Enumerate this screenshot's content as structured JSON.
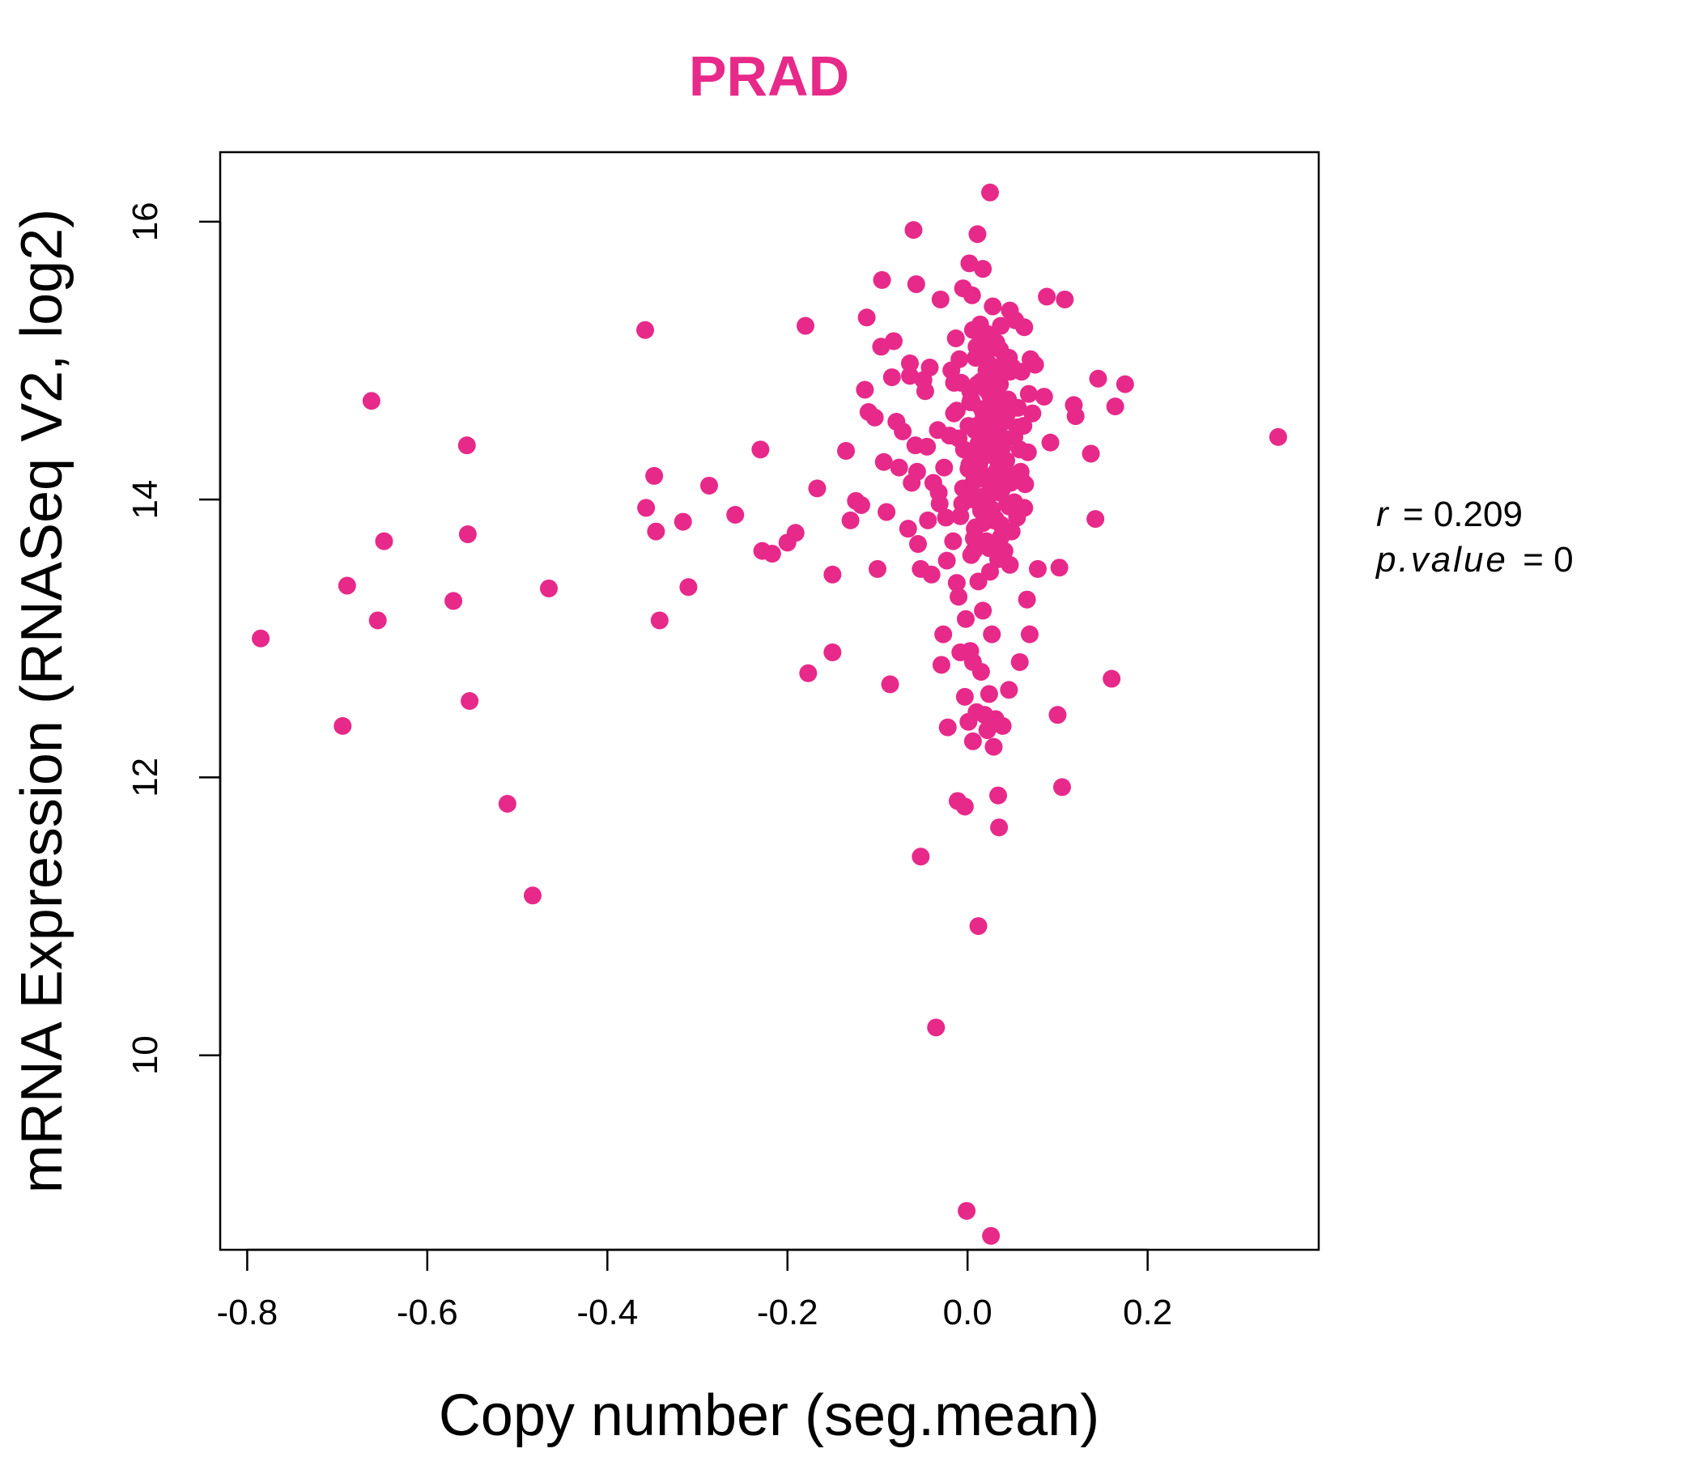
{
  "chart_data": {
    "type": "scatter",
    "title": "PRAD",
    "xlabel": "Copy number (seg.mean)",
    "ylabel": "mRNA Expression (RNASeq V2, log2)",
    "xlim": [
      -0.83,
      0.39
    ],
    "ylim": [
      8.6,
      16.5
    ],
    "x_ticks": [
      -0.8,
      -0.6,
      -0.4,
      -0.2,
      0.0,
      0.2
    ],
    "x_tick_labels": [
      "-0.8",
      "-0.6",
      "-0.4",
      "-0.2",
      "0.0",
      "0.2"
    ],
    "y_ticks": [
      10,
      12,
      14,
      16
    ],
    "y_tick_labels": [
      "10",
      "12",
      "14",
      "16"
    ],
    "grid": false,
    "point_color": "#E7298A",
    "title_color": "#E7298A",
    "annotation": {
      "r_label": "r",
      "r_value": "0.209",
      "p_label": "p.value",
      "p_value": "0"
    },
    "points": [
      [
        -0.785,
        13.0
      ],
      [
        -0.694,
        12.37
      ],
      [
        -0.689,
        13.38
      ],
      [
        -0.662,
        14.71
      ],
      [
        -0.655,
        13.13
      ],
      [
        -0.648,
        13.7
      ],
      [
        -0.571,
        13.27
      ],
      [
        -0.556,
        14.39
      ],
      [
        -0.555,
        13.75
      ],
      [
        -0.553,
        12.55
      ],
      [
        -0.511,
        11.81
      ],
      [
        -0.483,
        11.15
      ],
      [
        -0.465,
        13.36
      ],
      [
        -0.358,
        15.22
      ],
      [
        -0.357,
        13.94
      ],
      [
        -0.348,
        14.17
      ],
      [
        -0.346,
        13.77
      ],
      [
        -0.342,
        13.13
      ],
      [
        -0.316,
        13.84
      ],
      [
        -0.31,
        13.37
      ],
      [
        -0.287,
        14.1
      ],
      [
        -0.258,
        13.89
      ],
      [
        -0.23,
        14.36
      ],
      [
        -0.228,
        13.63
      ],
      [
        -0.217,
        13.61
      ],
      [
        -0.2,
        13.69
      ],
      [
        -0.191,
        13.76
      ],
      [
        -0.18,
        15.25
      ],
      [
        -0.177,
        12.75
      ],
      [
        -0.167,
        14.08
      ],
      [
        -0.15,
        13.46
      ],
      [
        -0.15,
        12.9
      ],
      [
        -0.135,
        14.35
      ],
      [
        -0.13,
        13.85
      ],
      [
        -0.124,
        13.99
      ],
      [
        -0.118,
        13.96
      ],
      [
        -0.114,
        14.79
      ],
      [
        -0.112,
        15.31
      ],
      [
        -0.11,
        14.63
      ],
      [
        -0.103,
        14.59
      ],
      [
        -0.1,
        13.5
      ],
      [
        -0.096,
        15.1
      ],
      [
        -0.095,
        15.58
      ],
      [
        -0.093,
        14.27
      ],
      [
        -0.09,
        13.91
      ],
      [
        -0.086,
        12.67
      ],
      [
        -0.084,
        14.88
      ],
      [
        -0.082,
        15.14
      ],
      [
        -0.079,
        14.56
      ],
      [
        -0.076,
        14.23
      ],
      [
        -0.072,
        14.49
      ],
      [
        -0.066,
        13.79
      ],
      [
        -0.064,
        14.89
      ],
      [
        -0.064,
        14.98
      ],
      [
        -0.062,
        14.12
      ],
      [
        -0.06,
        15.94
      ],
      [
        -0.058,
        14.39
      ],
      [
        -0.057,
        15.55
      ],
      [
        -0.056,
        14.2
      ],
      [
        -0.055,
        13.68
      ],
      [
        -0.052,
        13.5
      ],
      [
        -0.052,
        11.43
      ],
      [
        -0.049,
        14.86
      ],
      [
        -0.047,
        14.78
      ],
      [
        -0.045,
        14.38
      ],
      [
        -0.044,
        13.85
      ],
      [
        -0.042,
        14.95
      ],
      [
        -0.04,
        13.46
      ],
      [
        -0.038,
        14.12
      ],
      [
        -0.035,
        10.2
      ],
      [
        -0.033,
        14.5
      ],
      [
        -0.032,
        14.05
      ],
      [
        -0.031,
        13.97
      ],
      [
        -0.03,
        15.44
      ],
      [
        -0.029,
        12.81
      ],
      [
        -0.027,
        13.03
      ],
      [
        -0.026,
        14.23
      ],
      [
        -0.024,
        13.87
      ],
      [
        -0.023,
        13.56
      ],
      [
        -0.022,
        12.36
      ],
      [
        -0.02,
        14.46
      ],
      [
        -0.018,
        14.93
      ],
      [
        -0.016,
        13.7
      ],
      [
        -0.015,
        14.62
      ],
      [
        -0.013,
        15.16
      ],
      [
        -0.012,
        13.4
      ],
      [
        -0.011,
        11.83
      ],
      [
        -0.01,
        13.3
      ],
      [
        -0.009,
        15.01
      ],
      [
        -0.008,
        12.9
      ],
      [
        -0.007,
        14.84
      ],
      [
        -0.006,
        13.97
      ],
      [
        -0.005,
        15.52
      ],
      [
        -0.004,
        14.36
      ],
      [
        -0.003,
        12.58
      ],
      [
        -0.003,
        11.79
      ],
      [
        -0.002,
        13.14
      ],
      [
        -0.001,
        8.88
      ],
      [
        0.0,
        14.01
      ],
      [
        0.001,
        12.4
      ],
      [
        0.002,
        15.7
      ],
      [
        0.003,
        12.91
      ],
      [
        0.003,
        14.7
      ],
      [
        0.004,
        13.6
      ],
      [
        0.005,
        15.47
      ],
      [
        0.006,
        12.83
      ],
      [
        0.006,
        12.26
      ],
      [
        0.007,
        14.13
      ],
      [
        0.008,
        13.79
      ],
      [
        0.009,
        15.02
      ],
      [
        0.01,
        14.53
      ],
      [
        0.01,
        12.47
      ],
      [
        0.011,
        15.91
      ],
      [
        0.012,
        13.41
      ],
      [
        0.012,
        10.93
      ],
      [
        0.013,
        14.25
      ],
      [
        0.014,
        15.26
      ],
      [
        0.015,
        12.76
      ],
      [
        0.015,
        13.92
      ],
      [
        0.016,
        14.65
      ],
      [
        0.017,
        15.66
      ],
      [
        0.017,
        13.2
      ],
      [
        0.018,
        14.31
      ],
      [
        0.019,
        12.45
      ],
      [
        0.02,
        15.05
      ],
      [
        0.021,
        14.79
      ],
      [
        0.021,
        13.7
      ],
      [
        0.022,
        14.48
      ],
      [
        0.022,
        12.34
      ],
      [
        0.023,
        15.19
      ],
      [
        0.024,
        14.03
      ],
      [
        0.024,
        12.6
      ],
      [
        0.025,
        16.21
      ],
      [
        0.025,
        13.48
      ],
      [
        0.026,
        14.9
      ],
      [
        0.026,
        8.7
      ],
      [
        0.027,
        13.03
      ],
      [
        0.028,
        15.39
      ],
      [
        0.029,
        14.18
      ],
      [
        0.029,
        12.22
      ],
      [
        0.03,
        14.66
      ],
      [
        0.031,
        13.86
      ],
      [
        0.031,
        12.42
      ],
      [
        0.032,
        15.13
      ],
      [
        0.033,
        14.39
      ],
      [
        0.034,
        11.87
      ],
      [
        0.034,
        13.57
      ],
      [
        0.035,
        11.64
      ],
      [
        0.036,
        14.83
      ],
      [
        0.037,
        15.25
      ],
      [
        0.038,
        14.07
      ],
      [
        0.039,
        12.37
      ],
      [
        0.04,
        14.56
      ],
      [
        0.041,
        13.63
      ],
      [
        0.042,
        15.02
      ],
      [
        0.043,
        14.28
      ],
      [
        0.044,
        13.97
      ],
      [
        0.045,
        14.72
      ],
      [
        0.046,
        12.63
      ],
      [
        0.047,
        15.36
      ],
      [
        0.048,
        14.12
      ],
      [
        0.049,
        13.77
      ],
      [
        0.05,
        14.95
      ],
      [
        0.052,
        14.45
      ],
      [
        0.053,
        15.29
      ],
      [
        0.055,
        13.87
      ],
      [
        0.056,
        14.66
      ],
      [
        0.058,
        12.83
      ],
      [
        0.059,
        14.2
      ],
      [
        0.06,
        14.92
      ],
      [
        0.062,
        14.53
      ],
      [
        0.063,
        15.24
      ],
      [
        0.064,
        14.11
      ],
      [
        0.066,
        13.28
      ],
      [
        0.067,
        14.34
      ],
      [
        0.068,
        14.76
      ],
      [
        0.069,
        13.03
      ],
      [
        0.07,
        15.01
      ],
      [
        0.072,
        14.62
      ],
      [
        0.075,
        14.97
      ],
      [
        0.078,
        13.5
      ],
      [
        0.085,
        14.74
      ],
      [
        0.088,
        15.46
      ],
      [
        0.092,
        14.41
      ],
      [
        0.1,
        12.45
      ],
      [
        0.102,
        13.51
      ],
      [
        0.105,
        11.93
      ],
      [
        0.108,
        15.44
      ],
      [
        0.118,
        14.68
      ],
      [
        0.12,
        14.6
      ],
      [
        0.137,
        14.33
      ],
      [
        0.142,
        13.86
      ],
      [
        0.145,
        14.87
      ],
      [
        0.16,
        12.71
      ],
      [
        0.164,
        14.67
      ],
      [
        0.175,
        14.83
      ],
      [
        0.345,
        14.45
      ],
      [
        0.01,
        15.1
      ],
      [
        0.02,
        15.0
      ],
      [
        0.03,
        14.95
      ],
      [
        0.015,
        14.85
      ],
      [
        0.025,
        14.75
      ],
      [
        0.005,
        14.7
      ],
      [
        0.035,
        14.65
      ],
      [
        0.018,
        14.6
      ],
      [
        0.028,
        14.55
      ],
      [
        0.008,
        14.5
      ],
      [
        0.038,
        14.45
      ],
      [
        0.012,
        14.4
      ],
      [
        0.022,
        14.35
      ],
      [
        0.032,
        14.3
      ],
      [
        0.002,
        14.25
      ],
      [
        0.042,
        14.2
      ],
      [
        0.016,
        14.15
      ],
      [
        0.026,
        14.1
      ],
      [
        0.036,
        14.05
      ],
      [
        0.006,
        14.0
      ],
      [
        0.046,
        13.95
      ],
      [
        0.019,
        13.9
      ],
      [
        0.029,
        13.85
      ],
      [
        0.009,
        13.8
      ],
      [
        0.039,
        13.75
      ],
      [
        0.014,
        13.7
      ],
      [
        0.024,
        13.65
      ],
      [
        0.034,
        14.82
      ],
      [
        0.004,
        14.72
      ],
      [
        0.044,
        14.62
      ],
      [
        0.011,
        14.52
      ],
      [
        0.021,
        14.42
      ],
      [
        0.031,
        14.32
      ],
      [
        0.001,
        14.22
      ],
      [
        0.041,
        14.12
      ],
      [
        0.017,
        14.02
      ],
      [
        0.027,
        13.92
      ],
      [
        0.037,
        13.82
      ],
      [
        0.007,
        13.72
      ],
      [
        0.047,
        14.92
      ],
      [
        0.013,
        15.05
      ],
      [
        0.023,
        14.98
      ],
      [
        0.033,
        14.88
      ],
      [
        0.003,
        14.78
      ],
      [
        0.043,
        14.68
      ],
      [
        0.019,
        14.58
      ],
      [
        0.029,
        14.48
      ],
      [
        0.039,
        14.38
      ],
      [
        0.009,
        14.28
      ],
      [
        0.049,
        14.18
      ],
      [
        -0.005,
        14.08
      ],
      [
        0.052,
        13.98
      ],
      [
        -0.008,
        13.88
      ],
      [
        0.055,
        14.52
      ],
      [
        -0.01,
        14.44
      ],
      [
        0.058,
        14.36
      ],
      [
        -0.012,
        14.64
      ],
      [
        0.06,
        14.14
      ],
      [
        -0.015,
        14.84
      ],
      [
        0.063,
        13.94
      ],
      [
        0.016,
        15.18
      ],
      [
        0.026,
        15.12
      ],
      [
        0.036,
        15.08
      ],
      [
        0.006,
        15.22
      ],
      [
        0.046,
        15.02
      ],
      [
        0.021,
        14.93
      ],
      [
        0.011,
        14.83
      ],
      [
        0.031,
        14.73
      ],
      [
        0.041,
        14.63
      ],
      [
        0.001,
        14.53
      ],
      [
        0.024,
        14.43
      ],
      [
        0.014,
        14.33
      ],
      [
        0.034,
        14.23
      ],
      [
        0.044,
        14.13
      ],
      [
        0.004,
        14.03
      ],
      [
        0.027,
        13.93
      ],
      [
        0.017,
        13.83
      ],
      [
        0.037,
        13.73
      ],
      [
        0.007,
        13.63
      ],
      [
        0.047,
        13.53
      ]
    ]
  }
}
